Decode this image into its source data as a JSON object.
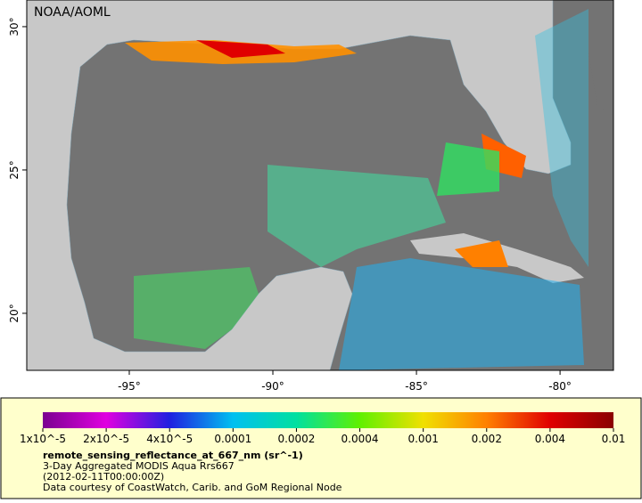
{
  "map": {
    "watermark": "NOAA/AOML",
    "lon_lim": [
      -98.57,
      -78.14
    ],
    "lat_lim": [
      18.01,
      30.93
    ],
    "lon_ticks": [
      {
        "value": -95,
        "label": "-95°"
      },
      {
        "value": -90,
        "label": "-90°"
      },
      {
        "value": -85,
        "label": "-85°"
      },
      {
        "value": -80,
        "label": "-80°"
      }
    ],
    "lat_ticks": [
      {
        "value": 20,
        "label": "20°"
      },
      {
        "value": 25,
        "label": "25°"
      },
      {
        "value": 30,
        "label": "30°"
      }
    ]
  },
  "legend": {
    "colorbar_colors": [
      "#7a0090",
      "#e000e0",
      "#2020e0",
      "#00c0f0",
      "#00e0a0",
      "#60f000",
      "#f0e000",
      "#ff8000",
      "#e00000",
      "#8a0000"
    ],
    "ticks": [
      {
        "value": 1e-05,
        "label": "1x10^-5"
      },
      {
        "value": 2e-05,
        "label": "2x10^-5"
      },
      {
        "value": 4e-05,
        "label": "4x10^-5"
      },
      0.0001,
      0.0002,
      0.0004,
      0.001,
      0.002,
      0.004,
      0.01
    ],
    "variable": "remote_sensing_reflectance_at_667_nm (sr^-1)",
    "description": "3-Day Aggregated MODIS Aqua Rrs667",
    "time": "(2012-02-11T00:00:00Z)",
    "credit": "Data courtesy of CoastWatch, Carib. and GoM Regional Node"
  }
}
